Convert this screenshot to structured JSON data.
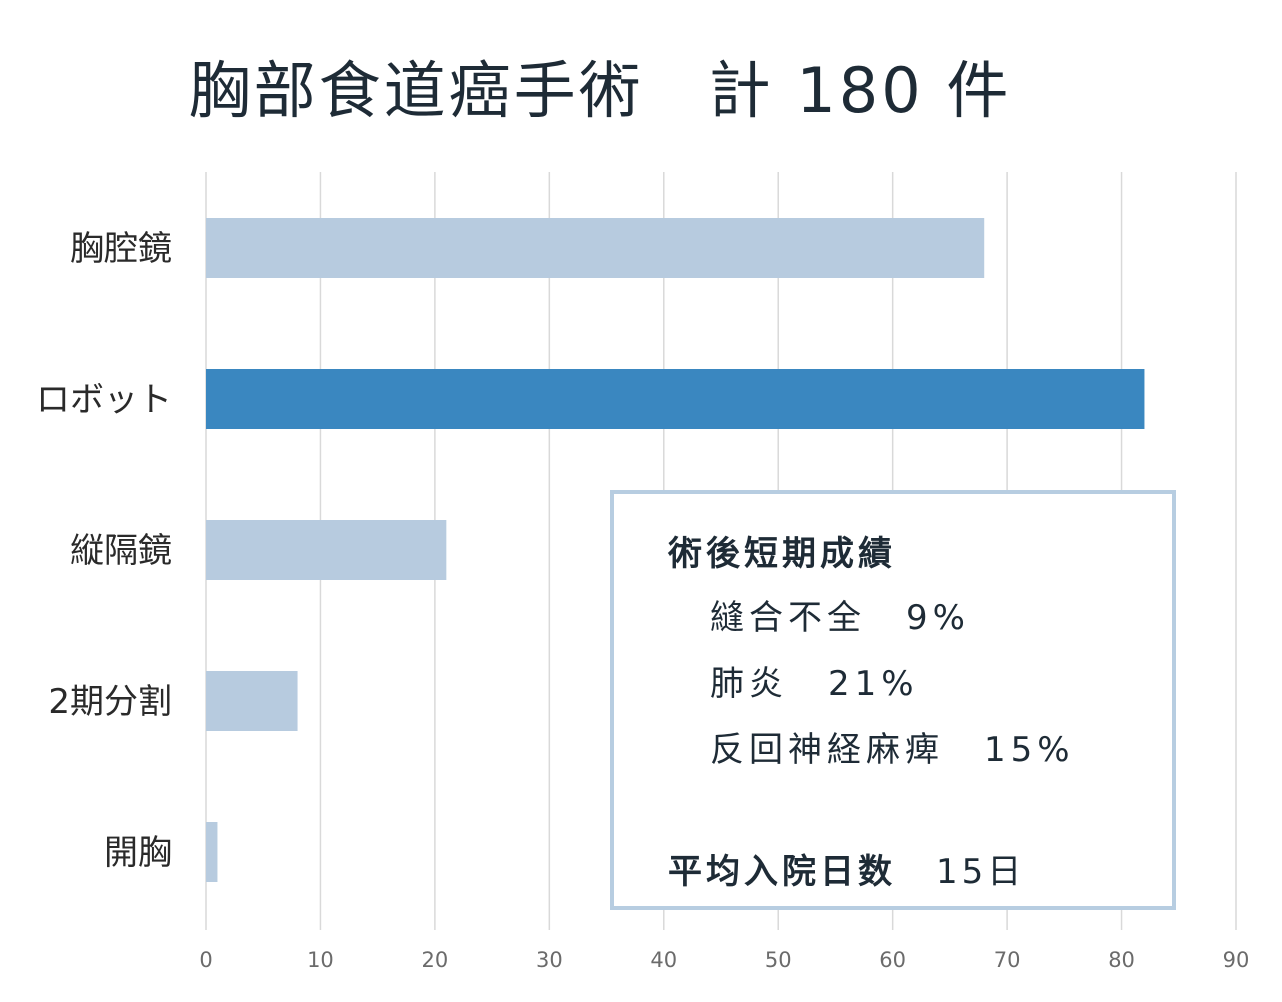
{
  "chart_data": {
    "type": "bar",
    "orientation": "horizontal",
    "title": "胸部食道癌手術　計 180 件",
    "categories": [
      "胸腔鏡",
      "ロボット",
      "縦隔鏡",
      "2期分割",
      "開胸"
    ],
    "values": [
      68,
      82,
      21,
      8,
      1
    ],
    "highlight_index": 1,
    "xlim": [
      0,
      90
    ],
    "xticks": [
      0,
      10,
      20,
      30,
      40,
      50,
      60,
      70,
      80,
      90
    ],
    "grid": "vertical",
    "colors": {
      "bar": "#b7cbdf",
      "highlight": "#3a87c0",
      "grid": "#d9d9d9"
    }
  },
  "stats_box": {
    "heading": "術後短期成績",
    "rows": [
      {
        "label": "縫合不全",
        "value": "9%"
      },
      {
        "label": "肺炎",
        "value": "21%"
      },
      {
        "label": "反回神経麻痺",
        "value": "15%"
      }
    ],
    "stay": {
      "label": "平均入院日数",
      "value": "15日"
    }
  }
}
